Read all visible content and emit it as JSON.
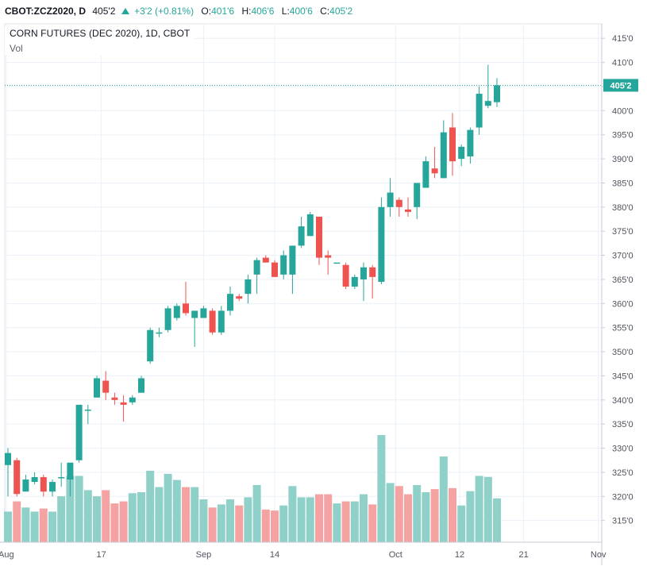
{
  "header": {
    "symbol": "CBOT:ZCZ2020, D",
    "last": "405'2",
    "change": "+3'2 (+0.81%)",
    "open_label": "O:",
    "open": "401'6",
    "high_label": "H:",
    "high": "406'6",
    "low_label": "L:",
    "low": "400'6",
    "close_label": "C:",
    "close": "405'2"
  },
  "legend": {
    "title": "CORN FUTURES (DEC 2020), 1D, CBOT",
    "volume_label": "Vol"
  },
  "colors": {
    "up": "#26a69a",
    "down": "#ef5350",
    "vol_up": "#8fd0c8",
    "vol_down": "#f4a3a2",
    "grid": "#eaf0f7",
    "price_line": "#26a69a"
  },
  "chart_data": {
    "type": "candlestick",
    "title": "CORN FUTURES (DEC 2020), 1D, CBOT",
    "y_ticks": [
      "315'0",
      "320'0",
      "325'0",
      "330'0",
      "335'0",
      "340'0",
      "345'0",
      "350'0",
      "355'0",
      "360'0",
      "365'0",
      "370'0",
      "375'0",
      "380'0",
      "385'0",
      "390'0",
      "395'0",
      "400'0",
      "405'0",
      "410'0",
      "415'0"
    ],
    "y_range": [
      310.5,
      418
    ],
    "x_ticks": [
      "Aug",
      "17",
      "Sep",
      "14",
      "Oct",
      "12",
      "21",
      "Nov"
    ],
    "last_price_label": "405'2",
    "last_price": 405.25,
    "candles": [
      {
        "date": "Aug 10",
        "o": 326.5,
        "h": 330.0,
        "l": 320.0,
        "c": 329.0,
        "v": 3
      },
      {
        "date": "Aug 11",
        "o": 327.5,
        "h": 328.0,
        "l": 320.0,
        "c": 320.5,
        "v": 4
      },
      {
        "date": "Aug 12",
        "o": 321.0,
        "h": 324.5,
        "l": 321.0,
        "c": 323.5,
        "v": 3.4
      },
      {
        "date": "Aug 13",
        "o": 323.0,
        "h": 325.0,
        "l": 322.5,
        "c": 324.0,
        "v": 3
      },
      {
        "date": "Aug 14",
        "o": 324.0,
        "h": 324.5,
        "l": 320.0,
        "c": 321.0,
        "v": 3.3
      },
      {
        "date": "Aug 17",
        "o": 321.0,
        "h": 323.5,
        "l": 320.0,
        "c": 323.0,
        "v": 3
      },
      {
        "date": "Aug 18",
        "o": 324.0,
        "h": 327.0,
        "l": 322.0,
        "c": 324.0,
        "v": 4.5
      },
      {
        "date": "Aug 19",
        "o": 323.5,
        "h": 326.5,
        "l": 320.0,
        "c": 327.0,
        "v": 6.5
      },
      {
        "date": "Aug 20",
        "o": 327.5,
        "h": 339.0,
        "l": 327.0,
        "c": 339.0,
        "v": 6.5
      },
      {
        "date": "Aug 21",
        "o": 338.0,
        "h": 339.0,
        "l": 335.0,
        "c": 338.0,
        "v": 5.1
      },
      {
        "date": "Aug 24",
        "o": 340.5,
        "h": 345.0,
        "l": 340.5,
        "c": 344.5,
        "v": 4.5
      },
      {
        "date": "Aug 25",
        "o": 344.0,
        "h": 346.0,
        "l": 340.0,
        "c": 341.5,
        "v": 5.1
      },
      {
        "date": "Aug 26",
        "o": 340.5,
        "h": 341.5,
        "l": 339.0,
        "c": 340.0,
        "v": 3.8
      },
      {
        "date": "Aug 27",
        "o": 339.5,
        "h": 341.0,
        "l": 335.5,
        "c": 339.0,
        "v": 4.0
      },
      {
        "date": "Aug 28",
        "o": 339.5,
        "h": 341.0,
        "l": 339.0,
        "c": 340.5,
        "v": 4.8
      },
      {
        "date": "Aug 31",
        "o": 341.5,
        "h": 345.0,
        "l": 341.5,
        "c": 344.5,
        "v": 4.9
      },
      {
        "date": "Sep 01",
        "o": 348.0,
        "h": 355.0,
        "l": 347.5,
        "c": 354.5,
        "v": 7.0
      },
      {
        "date": "Sep 02",
        "o": 354.0,
        "h": 355.0,
        "l": 353.0,
        "c": 354.0,
        "v": 5.4
      },
      {
        "date": "Sep 03",
        "o": 354.5,
        "h": 359.5,
        "l": 354.0,
        "c": 359.0,
        "v": 6.7
      },
      {
        "date": "Sep 04",
        "o": 357.0,
        "h": 360.0,
        "l": 356.5,
        "c": 359.5,
        "v": 6.1
      },
      {
        "date": "Sep 08",
        "o": 360.0,
        "h": 364.5,
        "l": 357.5,
        "c": 358.0,
        "v": 5.4
      },
      {
        "date": "Sep 09",
        "o": 357.0,
        "h": 358.0,
        "l": 351.0,
        "c": 358.5,
        "v": 5.4
      },
      {
        "date": "Sep 10",
        "o": 357.0,
        "h": 359.5,
        "l": 357.0,
        "c": 359.0,
        "v": 4.2
      },
      {
        "date": "Sep 11",
        "o": 358.5,
        "h": 359.0,
        "l": 353.5,
        "c": 354.0,
        "v": 3.4
      },
      {
        "date": "Sep 14",
        "o": 354.0,
        "h": 359.5,
        "l": 353.5,
        "c": 358.5,
        "v": 3.7
      },
      {
        "date": "Sep 15",
        "o": 358.5,
        "h": 363.5,
        "l": 357.5,
        "c": 362.0,
        "v": 4.2
      },
      {
        "date": "Sep 16",
        "o": 361.5,
        "h": 362.0,
        "l": 360.5,
        "c": 361.0,
        "v": 3.6
      },
      {
        "date": "Sep 17",
        "o": 362.0,
        "h": 366.0,
        "l": 360.0,
        "c": 365.0,
        "v": 4.4
      },
      {
        "date": "Sep 18",
        "o": 366.0,
        "h": 369.5,
        "l": 362.0,
        "c": 369.0,
        "v": 5.6
      },
      {
        "date": "Sep 21",
        "o": 369.5,
        "h": 370.0,
        "l": 368.5,
        "c": 368.5,
        "v": 3.2
      },
      {
        "date": "Sep 22",
        "o": 368.5,
        "h": 369.0,
        "l": 365.5,
        "c": 365.5,
        "v": 3.1
      },
      {
        "date": "Sep 23",
        "o": 366.0,
        "h": 371.0,
        "l": 365.0,
        "c": 370.0,
        "v": 3.6
      },
      {
        "date": "Sep 24",
        "o": 366.0,
        "h": 372.0,
        "l": 362.0,
        "c": 372.0,
        "v": 5.5
      },
      {
        "date": "Sep 25",
        "o": 372.0,
        "h": 378.0,
        "l": 371.5,
        "c": 376.0,
        "v": 4.4
      },
      {
        "date": "Sep 28",
        "o": 374.0,
        "h": 379.0,
        "l": 374.0,
        "c": 378.5,
        "v": 4.4
      },
      {
        "date": "Sep 29",
        "o": 378.0,
        "h": 378.0,
        "l": 368.0,
        "c": 369.5,
        "v": 4.7
      },
      {
        "date": "Sep 30",
        "o": 370.0,
        "h": 371.0,
        "l": 366.0,
        "c": 369.5,
        "v": 4.7
      },
      {
        "date": "Oct 01",
        "o": 368.5,
        "h": 368.5,
        "l": 368.5,
        "c": 368.5,
        "v": 3.8
      },
      {
        "date": "Oct 02",
        "o": 368.0,
        "h": 368.5,
        "l": 363.0,
        "c": 363.5,
        "v": 4.0
      },
      {
        "date": "Oct 05",
        "o": 363.5,
        "h": 366.0,
        "l": 363.0,
        "c": 365.5,
        "v": 4.0
      },
      {
        "date": "Oct 06",
        "o": 365.0,
        "h": 368.5,
        "l": 360.5,
        "c": 367.5,
        "v": 4.7
      },
      {
        "date": "Oct 07",
        "o": 367.5,
        "h": 368.0,
        "l": 361.0,
        "c": 365.5,
        "v": 3.7
      },
      {
        "date": "Oct 08",
        "o": 364.5,
        "h": 382.0,
        "l": 364.0,
        "c": 380.0,
        "v": 10.5
      },
      {
        "date": "Oct 09",
        "o": 380.0,
        "h": 386.0,
        "l": 378.0,
        "c": 383.0,
        "v": 5.8
      },
      {
        "date": "Oct 10",
        "o": 381.5,
        "h": 382.0,
        "l": 378.0,
        "c": 380.0,
        "v": 5.5
      },
      {
        "date": "Oct 12",
        "o": 379.5,
        "h": 382.0,
        "l": 378.0,
        "c": 379.0,
        "v": 4.7
      },
      {
        "date": "Oct 13",
        "o": 380.0,
        "h": 385.0,
        "l": 377.5,
        "c": 385.0,
        "v": 5.6
      },
      {
        "date": "Oct 14",
        "o": 384.0,
        "h": 390.5,
        "l": 384.0,
        "c": 389.5,
        "v": 4.9
      },
      {
        "date": "Oct 15",
        "o": 388.0,
        "h": 392.5,
        "l": 386.0,
        "c": 387.0,
        "v": 5.2
      },
      {
        "date": "Oct 16",
        "o": 386.0,
        "h": 398.0,
        "l": 386.0,
        "c": 395.5,
        "v": 8.4
      },
      {
        "date": "Oct 19",
        "o": 396.5,
        "h": 399.5,
        "l": 386.5,
        "c": 389.5,
        "v": 5.3
      },
      {
        "date": "Oct 20",
        "o": 390.0,
        "h": 393.0,
        "l": 388.5,
        "c": 392.5,
        "v": 3.6
      },
      {
        "date": "Oct 21",
        "o": 390.5,
        "h": 396.5,
        "l": 389.0,
        "c": 396.0,
        "v": 5.0
      },
      {
        "date": "Oct 22",
        "o": 396.5,
        "h": 405.0,
        "l": 395.0,
        "c": 403.5,
        "v": 6.5
      },
      {
        "date": "Oct 23",
        "o": 401.0,
        "h": 409.5,
        "l": 400.5,
        "c": 402.0,
        "v": 6.4
      },
      {
        "date": "Oct 26",
        "o": 401.75,
        "h": 406.75,
        "l": 400.75,
        "c": 405.25,
        "v": 4.3
      }
    ]
  }
}
